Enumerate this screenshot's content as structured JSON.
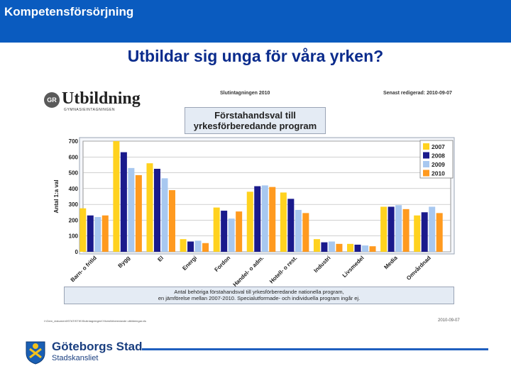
{
  "header": {
    "title": "Kompetensförsörjning"
  },
  "slide": {
    "title": "Utbildar sig unga för våra yrken?"
  },
  "figure": {
    "brand": {
      "badge": "GR",
      "word": "Utbildning",
      "sub": "GYMNASIEINTAGNINGEN"
    },
    "subtitle": "Slutintagningen 2010",
    "edited": "Senast redigerad: 2010-09-07",
    "title": "Förstahandsval till\nyrkesförberedande program",
    "caption": "Antal behöriga förstahandsval till yrkesförberedande nationella program,\nen jämförelse mellan 2007-2010. Specialutformade- och individuella program ingår ej.",
    "footer_path": "I:\\Gem_dokument\\STATISTIK\\Slutintagningen\\Yrkesförberedande utbildningar.xls",
    "footer_date": "2010-09-07"
  },
  "chart_data": {
    "type": "bar",
    "ylabel": "Antal 1:a val",
    "ylim": [
      0,
      700
    ],
    "yticks": [
      0,
      100,
      200,
      300,
      400,
      500,
      600,
      700
    ],
    "categories": [
      "Barn- o fritid",
      "Bygg",
      "El",
      "Energi",
      "Fordon",
      "Handel- o adm.",
      "Hotell- o rest.",
      "Industri",
      "Livsmedel",
      "Media",
      "Omvårdnad"
    ],
    "series": [
      {
        "name": "2007",
        "color": "#ffd21f",
        "values": [
          275,
          700,
          560,
          80,
          280,
          380,
          375,
          80,
          50,
          285,
          230
        ]
      },
      {
        "name": "2008",
        "color": "#1a1a8c",
        "values": [
          230,
          630,
          525,
          65,
          260,
          415,
          335,
          60,
          45,
          285,
          250
        ]
      },
      {
        "name": "2009",
        "color": "#a8c8f0",
        "values": [
          220,
          530,
          465,
          70,
          210,
          420,
          265,
          65,
          40,
          295,
          285
        ]
      },
      {
        "name": "2010",
        "color": "#ff9a1f",
        "values": [
          230,
          485,
          390,
          55,
          255,
          410,
          245,
          50,
          35,
          270,
          245
        ]
      }
    ]
  },
  "city_logo": {
    "name": "Göteborgs Stad",
    "dept": "Stadskansliet"
  }
}
